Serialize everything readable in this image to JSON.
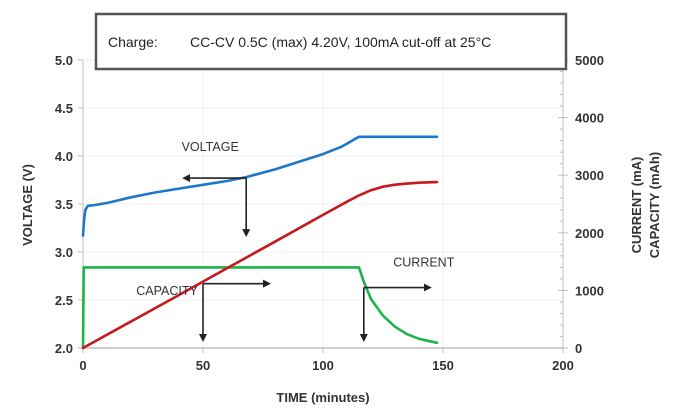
{
  "chart_data": {
    "type": "line",
    "title": "Charge:      CC-CV 0.5C (max) 4.20V, 100mA cut-off at 25°C",
    "title_label": "Charge:",
    "title_detail": "CC-CV 0.5C (max) 4.20V, 100mA cut-off at 25°C",
    "xlabel": "TIME (minutes)",
    "ylabel_left": "VOLTAGE (V)",
    "ylabel_right_1": "CURRENT (mA)",
    "ylabel_right_2": "CAPACITY (mAh)",
    "xlim": [
      0,
      200
    ],
    "ylim_left": [
      2.0,
      5.0
    ],
    "ylim_right": [
      0,
      5000
    ],
    "x_ticks": [
      "0",
      "50",
      "100",
      "150",
      "200"
    ],
    "x_tick_values": [
      0,
      50,
      100,
      150,
      200
    ],
    "y_left_ticks": [
      "2.0",
      "2.5",
      "3.0",
      "3.5",
      "4.0",
      "4.5",
      "5.0"
    ],
    "y_left_tick_values": [
      2.0,
      2.5,
      3.0,
      3.5,
      4.0,
      4.5,
      5.0
    ],
    "y_right_ticks": [
      "0",
      "1000",
      "2000",
      "3000",
      "4000",
      "5000"
    ],
    "y_right_tick_values": [
      0,
      1000,
      2000,
      3000,
      4000,
      5000
    ],
    "grid": true,
    "series": [
      {
        "name": "VOLTAGE",
        "axis": "left",
        "color": "#1f77c9",
        "x": [
          0,
          0.5,
          1,
          2,
          5,
          10,
          20,
          30,
          40,
          50,
          60,
          68,
          80,
          90,
          100,
          108,
          115,
          120,
          130,
          140,
          147.5
        ],
        "y": [
          3.17,
          3.35,
          3.44,
          3.48,
          3.49,
          3.51,
          3.57,
          3.62,
          3.66,
          3.7,
          3.74,
          3.78,
          3.86,
          3.94,
          4.02,
          4.1,
          4.2,
          4.2,
          4.2,
          4.2,
          4.2
        ]
      },
      {
        "name": "CAPACITY",
        "axis": "right",
        "color": "#c8171e",
        "x": [
          0,
          20,
          40,
          60,
          80,
          100,
          110,
          115,
          120,
          125,
          130,
          135,
          140,
          147.5
        ],
        "y": [
          0,
          460,
          920,
          1385,
          1845,
          2310,
          2540,
          2650,
          2740,
          2800,
          2835,
          2855,
          2870,
          2880
        ]
      },
      {
        "name": "CURRENT",
        "axis": "right",
        "color": "#1db34a",
        "x": [
          0,
          0.3,
          10,
          50,
          100,
          115,
          117,
          120,
          125,
          130,
          135,
          140,
          147.5
        ],
        "y": [
          0,
          1400,
          1400,
          1400,
          1400,
          1400,
          1150,
          850,
          560,
          370,
          240,
          160,
          90
        ]
      }
    ],
    "annotations": [
      {
        "text": "VOLTAGE",
        "x": 53,
        "y_left": 4.05,
        "arrow_origin": [
          68,
          3.77
        ],
        "arrow_directions": [
          "left",
          "down"
        ]
      },
      {
        "text": "CAPACITY",
        "x": 35,
        "y_left": 2.55,
        "arrow_origin": [
          50,
          2.67
        ],
        "arrow_directions": [
          "right",
          "down"
        ]
      },
      {
        "text": "CURRENT",
        "x": 142,
        "y_left": 2.85,
        "arrow_origin": [
          117,
          2.63
        ],
        "arrow_directions": [
          "right",
          "down"
        ]
      }
    ]
  }
}
